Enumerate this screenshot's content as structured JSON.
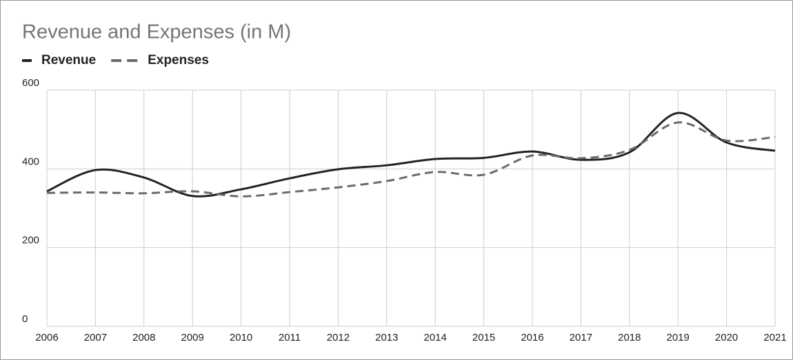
{
  "chart_data": {
    "type": "line",
    "title": "Revenue and Expenses (in M)",
    "x": [
      2006,
      2007,
      2008,
      2009,
      2010,
      2011,
      2012,
      2013,
      2014,
      2015,
      2016,
      2017,
      2018,
      2019,
      2020,
      2021
    ],
    "series": [
      {
        "name": "Revenue",
        "color": "#222222",
        "dash": false,
        "values": [
          343,
          397,
          378,
          331,
          348,
          376,
          399,
          409,
          425,
          428,
          444,
          423,
          442,
          542,
          467,
          446
        ]
      },
      {
        "name": "Expenses",
        "color": "#6a6a6a",
        "dash": true,
        "values": [
          339,
          340,
          338,
          343,
          330,
          341,
          353,
          369,
          392,
          385,
          434,
          427,
          448,
          518,
          472,
          481
        ]
      }
    ],
    "xlim": [
      2006,
      2021
    ],
    "xticks": [
      2006,
      2007,
      2008,
      2009,
      2010,
      2011,
      2012,
      2013,
      2014,
      2015,
      2016,
      2017,
      2018,
      2019,
      2020,
      2021
    ],
    "ylim": [
      0,
      600
    ],
    "yticks": [
      0,
      200,
      400,
      600
    ],
    "grid": true,
    "legend": "top-left",
    "smooth": true
  }
}
